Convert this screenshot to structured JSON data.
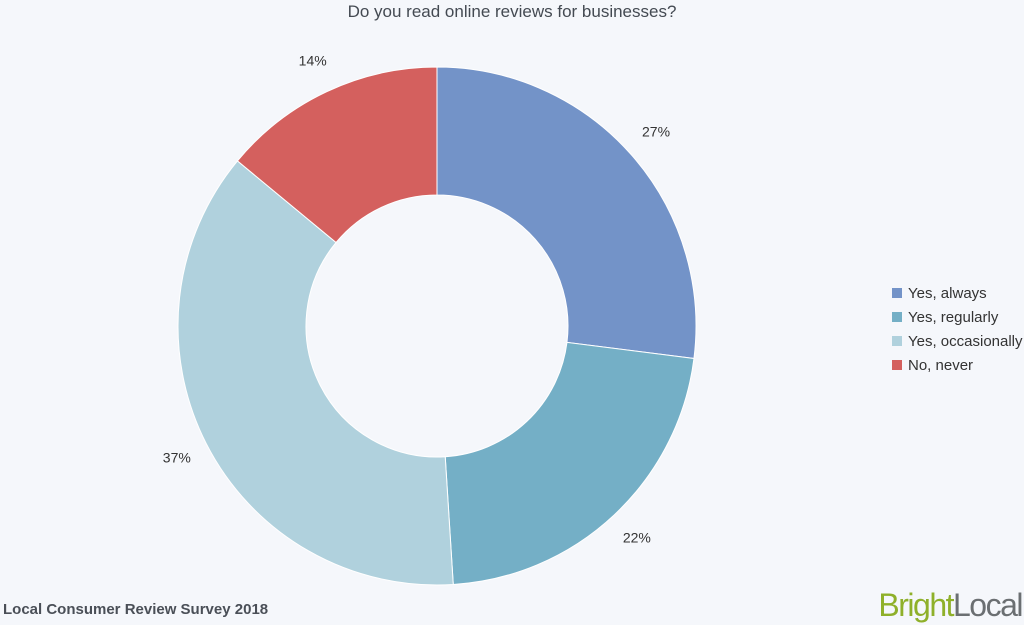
{
  "chart_data": {
    "type": "pie",
    "title": "Do you read online reviews for businesses?",
    "categories": [
      "Yes, always",
      "Yes, regularly",
      "Yes, occasionally",
      "No, never"
    ],
    "values": [
      27,
      22,
      37,
      14
    ],
    "data_labels": [
      "27%",
      "22%",
      "37%",
      "14%"
    ],
    "colors": [
      "#7393c8",
      "#74afc6",
      "#b0d1dd",
      "#d4605e"
    ],
    "legend_position": "right",
    "style": "donut"
  },
  "footer": {
    "source": "Local Consumer Review Survey 2018"
  },
  "brand": {
    "part1": "Bright",
    "part2": "Local"
  }
}
